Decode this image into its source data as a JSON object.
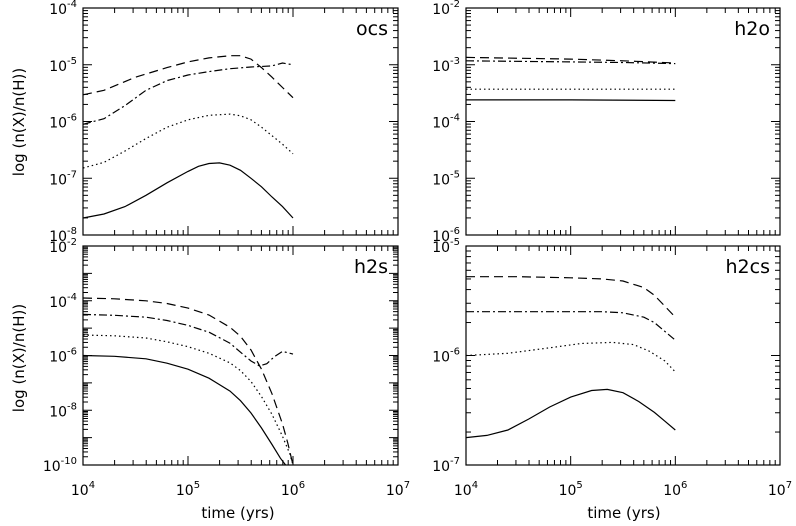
{
  "chart_data": [
    {
      "type": "line",
      "panel": "top-left",
      "title": "ocs",
      "xlabel": "",
      "ylabel": "log (n(X)/n(H))",
      "xscale": "log",
      "yscale": "log",
      "xlim": [
        10000,
        10000000
      ],
      "ylim": [
        1e-08,
        0.0001
      ],
      "xticklabels": [],
      "yticklabels": [
        {
          "base": "10",
          "exp": "-8"
        },
        {
          "base": "10",
          "exp": "-7"
        },
        {
          "base": "10",
          "exp": "-6"
        },
        {
          "base": "10",
          "exp": "-5"
        },
        {
          "base": "10",
          "exp": "-4"
        }
      ],
      "series": [
        {
          "name": "dashed",
          "style": "dashed",
          "points": [
            [
              4.0,
              -5.53
            ],
            [
              4.2,
              -5.45
            ],
            [
              4.5,
              -5.22
            ],
            [
              4.8,
              -5.05
            ],
            [
              5.0,
              -4.95
            ],
            [
              5.2,
              -4.88
            ],
            [
              5.4,
              -4.84
            ],
            [
              5.5,
              -4.84
            ],
            [
              5.6,
              -4.9
            ],
            [
              5.7,
              -5.05
            ],
            [
              5.8,
              -5.22
            ],
            [
              5.9,
              -5.4
            ],
            [
              6.0,
              -5.58
            ]
          ]
        },
        {
          "name": "dash-dot",
          "style": "dashdot",
          "points": [
            [
              4.0,
              -6.05
            ],
            [
              4.2,
              -5.95
            ],
            [
              4.4,
              -5.72
            ],
            [
              4.6,
              -5.45
            ],
            [
              4.8,
              -5.28
            ],
            [
              5.0,
              -5.18
            ],
            [
              5.2,
              -5.12
            ],
            [
              5.4,
              -5.07
            ],
            [
              5.6,
              -5.04
            ],
            [
              5.8,
              -5.02
            ],
            [
              5.9,
              -4.97
            ],
            [
              6.0,
              -5.0
            ]
          ]
        },
        {
          "name": "dotted",
          "style": "dotted",
          "points": [
            [
              4.0,
              -6.82
            ],
            [
              4.2,
              -6.72
            ],
            [
              4.4,
              -6.52
            ],
            [
              4.6,
              -6.3
            ],
            [
              4.8,
              -6.1
            ],
            [
              5.0,
              -5.97
            ],
            [
              5.2,
              -5.89
            ],
            [
              5.4,
              -5.87
            ],
            [
              5.5,
              -5.9
            ],
            [
              5.6,
              -5.97
            ],
            [
              5.7,
              -6.1
            ],
            [
              5.8,
              -6.25
            ],
            [
              5.9,
              -6.4
            ],
            [
              6.0,
              -6.57
            ]
          ]
        },
        {
          "name": "solid",
          "style": "solid",
          "points": [
            [
              4.0,
              -7.7
            ],
            [
              4.2,
              -7.63
            ],
            [
              4.4,
              -7.5
            ],
            [
              4.6,
              -7.3
            ],
            [
              4.8,
              -7.08
            ],
            [
              5.0,
              -6.88
            ],
            [
              5.1,
              -6.79
            ],
            [
              5.2,
              -6.74
            ],
            [
              5.3,
              -6.73
            ],
            [
              5.4,
              -6.77
            ],
            [
              5.5,
              -6.86
            ],
            [
              5.6,
              -7.0
            ],
            [
              5.7,
              -7.15
            ],
            [
              5.8,
              -7.33
            ],
            [
              5.9,
              -7.5
            ],
            [
              6.0,
              -7.7
            ]
          ]
        }
      ]
    },
    {
      "type": "line",
      "panel": "top-right",
      "title": "h2o",
      "xlabel": "",
      "ylabel": "",
      "xscale": "log",
      "yscale": "log",
      "xlim": [
        10000,
        10000000
      ],
      "ylim": [
        1e-06,
        0.01
      ],
      "xticklabels": [],
      "yticklabels": [
        {
          "base": "10",
          "exp": "-6"
        },
        {
          "base": "10",
          "exp": "-5"
        },
        {
          "base": "10",
          "exp": "-4"
        },
        {
          "base": "10",
          "exp": "-3"
        },
        {
          "base": "10",
          "exp": "-2"
        }
      ],
      "series": [
        {
          "name": "dashed",
          "style": "dashed",
          "points": [
            [
              4.0,
              -2.87
            ],
            [
              5.0,
              -2.9
            ],
            [
              5.5,
              -2.93
            ],
            [
              6.0,
              -2.97
            ]
          ]
        },
        {
          "name": "dash-dot",
          "style": "dashdot",
          "points": [
            [
              4.0,
              -2.93
            ],
            [
              5.0,
              -2.95
            ],
            [
              5.5,
              -2.96
            ],
            [
              6.0,
              -2.98
            ]
          ]
        },
        {
          "name": "dotted",
          "style": "dotted",
          "points": [
            [
              4.0,
              -3.43
            ],
            [
              5.0,
              -3.43
            ],
            [
              6.0,
              -3.43
            ]
          ]
        },
        {
          "name": "solid",
          "style": "solid",
          "points": [
            [
              4.0,
              -3.62
            ],
            [
              5.0,
              -3.62
            ],
            [
              6.0,
              -3.63
            ]
          ]
        }
      ]
    },
    {
      "type": "line",
      "panel": "bottom-left",
      "title": "h2s",
      "xlabel": "time (yrs)",
      "ylabel": "log (n(X)/n(H))",
      "xscale": "log",
      "yscale": "log",
      "xlim": [
        10000,
        10000000
      ],
      "ylim": [
        1e-10,
        0.01
      ],
      "xticklabels": [
        {
          "base": "10",
          "exp": "4"
        },
        {
          "base": "10",
          "exp": "5"
        },
        {
          "base": "10",
          "exp": "6"
        },
        {
          "base": "10",
          "exp": "7"
        }
      ],
      "yticklabels": [
        {
          "base": "10",
          "exp": "-10"
        },
        {
          "base": "10",
          "exp": "-8"
        },
        {
          "base": "10",
          "exp": "-6"
        },
        {
          "base": "10",
          "exp": "-4"
        },
        {
          "base": "10",
          "exp": "-2"
        }
      ],
      "series": [
        {
          "name": "dashed",
          "style": "dashed",
          "points": [
            [
              4.0,
              -3.9
            ],
            [
              4.3,
              -3.93
            ],
            [
              4.6,
              -4.0
            ],
            [
              4.8,
              -4.1
            ],
            [
              5.0,
              -4.27
            ],
            [
              5.2,
              -4.52
            ],
            [
              5.4,
              -4.97
            ],
            [
              5.5,
              -5.3
            ],
            [
              5.6,
              -5.8
            ],
            [
              5.7,
              -6.5
            ],
            [
              5.8,
              -7.4
            ],
            [
              5.9,
              -8.5
            ],
            [
              5.95,
              -9.2
            ],
            [
              6.0,
              -10.0
            ]
          ]
        },
        {
          "name": "dash-dot",
          "style": "dashdot",
          "points": [
            [
              4.0,
              -4.5
            ],
            [
              4.3,
              -4.53
            ],
            [
              4.6,
              -4.6
            ],
            [
              4.8,
              -4.72
            ],
            [
              5.0,
              -4.9
            ],
            [
              5.2,
              -5.15
            ],
            [
              5.4,
              -5.55
            ],
            [
              5.5,
              -5.88
            ],
            [
              5.6,
              -6.2
            ],
            [
              5.68,
              -6.38
            ],
            [
              5.75,
              -6.3
            ],
            [
              5.82,
              -6.05
            ],
            [
              5.9,
              -5.85
            ],
            [
              6.0,
              -5.95
            ]
          ]
        },
        {
          "name": "dotted",
          "style": "dotted",
          "points": [
            [
              4.0,
              -5.25
            ],
            [
              4.3,
              -5.28
            ],
            [
              4.6,
              -5.36
            ],
            [
              4.8,
              -5.5
            ],
            [
              5.0,
              -5.68
            ],
            [
              5.2,
              -5.92
            ],
            [
              5.4,
              -6.27
            ],
            [
              5.5,
              -6.55
            ],
            [
              5.6,
              -6.95
            ],
            [
              5.7,
              -7.5
            ],
            [
              5.8,
              -8.15
            ],
            [
              5.9,
              -8.95
            ],
            [
              5.97,
              -9.6
            ],
            [
              6.0,
              -10.0
            ]
          ]
        },
        {
          "name": "solid",
          "style": "solid",
          "points": [
            [
              4.0,
              -6.0
            ],
            [
              4.3,
              -6.03
            ],
            [
              4.6,
              -6.12
            ],
            [
              4.8,
              -6.28
            ],
            [
              5.0,
              -6.5
            ],
            [
              5.2,
              -6.83
            ],
            [
              5.4,
              -7.3
            ],
            [
              5.5,
              -7.65
            ],
            [
              5.6,
              -8.1
            ],
            [
              5.7,
              -8.65
            ],
            [
              5.8,
              -9.25
            ],
            [
              5.88,
              -9.75
            ],
            [
              5.93,
              -10.0
            ]
          ]
        }
      ]
    },
    {
      "type": "line",
      "panel": "bottom-right",
      "title": "h2cs",
      "xlabel": "time (yrs)",
      "ylabel": "",
      "xscale": "log",
      "yscale": "log",
      "xlim": [
        10000,
        10000000
      ],
      "ylim": [
        1e-07,
        1e-05
      ],
      "xticklabels": [
        {
          "base": "10",
          "exp": "4"
        },
        {
          "base": "10",
          "exp": "5"
        },
        {
          "base": "10",
          "exp": "6"
        },
        {
          "base": "10",
          "exp": "7"
        }
      ],
      "yticklabels": [
        {
          "base": "10",
          "exp": "-7"
        },
        {
          "base": "10",
          "exp": "-6"
        },
        {
          "base": "10",
          "exp": "-5"
        }
      ],
      "series": [
        {
          "name": "dashed",
          "style": "dashed",
          "points": [
            [
              4.0,
              -5.28
            ],
            [
              4.5,
              -5.28
            ],
            [
              5.0,
              -5.29
            ],
            [
              5.3,
              -5.3
            ],
            [
              5.5,
              -5.32
            ],
            [
              5.7,
              -5.38
            ],
            [
              5.8,
              -5.45
            ],
            [
              5.9,
              -5.55
            ],
            [
              6.0,
              -5.65
            ]
          ]
        },
        {
          "name": "dash-dot",
          "style": "dashdot",
          "points": [
            [
              4.0,
              -5.6
            ],
            [
              4.5,
              -5.6
            ],
            [
              5.0,
              -5.6
            ],
            [
              5.3,
              -5.6
            ],
            [
              5.5,
              -5.61
            ],
            [
              5.7,
              -5.65
            ],
            [
              5.8,
              -5.7
            ],
            [
              5.9,
              -5.78
            ],
            [
              6.0,
              -5.86
            ]
          ]
        },
        {
          "name": "dotted",
          "style": "dotted",
          "points": [
            [
              4.0,
              -6.0
            ],
            [
              4.4,
              -5.98
            ],
            [
              4.8,
              -5.93
            ],
            [
              5.1,
              -5.89
            ],
            [
              5.4,
              -5.88
            ],
            [
              5.6,
              -5.9
            ],
            [
              5.75,
              -5.96
            ],
            [
              5.9,
              -6.05
            ],
            [
              6.0,
              -6.15
            ]
          ]
        },
        {
          "name": "solid",
          "style": "solid",
          "points": [
            [
              4.0,
              -6.75
            ],
            [
              4.2,
              -6.73
            ],
            [
              4.4,
              -6.68
            ],
            [
              4.6,
              -6.58
            ],
            [
              4.8,
              -6.47
            ],
            [
              5.0,
              -6.38
            ],
            [
              5.2,
              -6.32
            ],
            [
              5.35,
              -6.31
            ],
            [
              5.5,
              -6.34
            ],
            [
              5.65,
              -6.42
            ],
            [
              5.8,
              -6.52
            ],
            [
              5.9,
              -6.6
            ],
            [
              6.0,
              -6.68
            ]
          ]
        }
      ]
    }
  ]
}
